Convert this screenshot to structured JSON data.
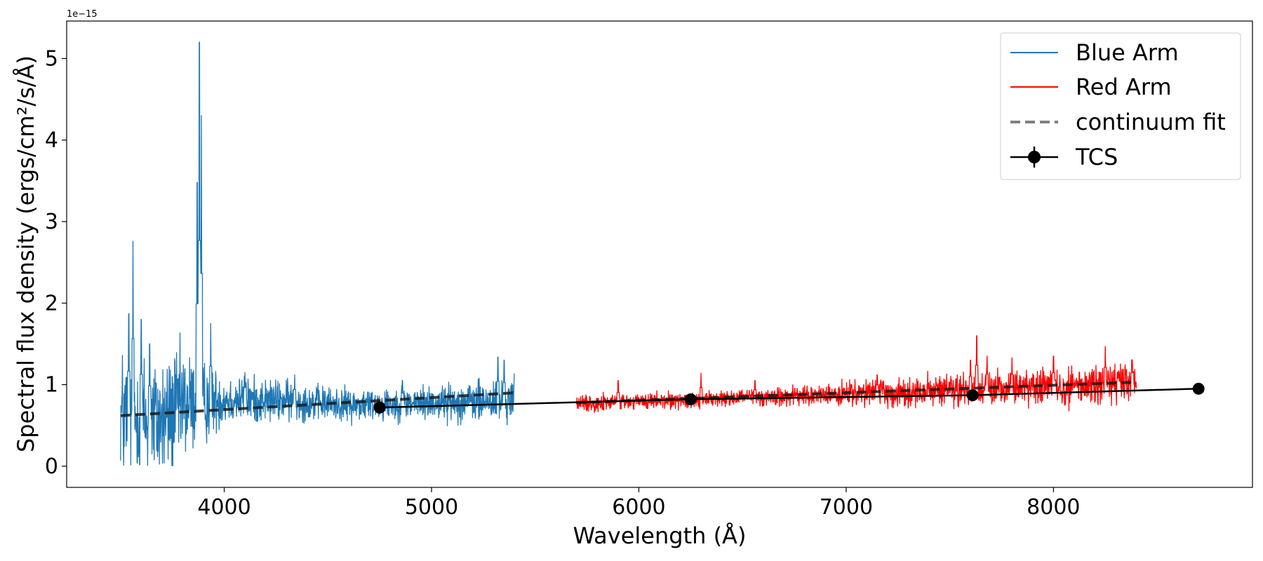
{
  "chart_data": {
    "type": "line",
    "title": "",
    "xlabel": "Wavelength (Å)",
    "ylabel": "Spectral flux density (ergs/cm²/s/Å)",
    "y_offset_label": "1e−15",
    "xlim": [
      3240,
      8960
    ],
    "ylim": [
      -0.26,
      5.46
    ],
    "x_ticks": [
      4000,
      5000,
      6000,
      7000,
      8000
    ],
    "y_ticks": [
      0,
      1,
      2,
      3,
      4,
      5
    ],
    "grid": false,
    "legend_position": "top-right",
    "colors": {
      "blue_arm": "#1f77b4",
      "red_arm": "#ff0000",
      "continuum": "#808080",
      "tcs": "#000000"
    },
    "series": [
      {
        "name": "Blue Arm",
        "style": "line",
        "x_range": [
          3500,
          5400
        ],
        "continuum": [
          [
            3500,
            0.6
          ],
          [
            3700,
            0.55
          ],
          [
            3800,
            0.75
          ],
          [
            4000,
            0.82
          ],
          [
            4300,
            0.8
          ],
          [
            4600,
            0.75
          ],
          [
            5000,
            0.78
          ],
          [
            5400,
            0.8
          ]
        ],
        "noise": [
          [
            3500,
            0.45
          ],
          [
            3800,
            0.35
          ],
          [
            4000,
            0.15
          ],
          [
            4500,
            0.1
          ],
          [
            5000,
            0.1
          ],
          [
            5400,
            0.14
          ]
        ],
        "peaks": [
          [
            3560,
            2.76
          ],
          [
            3540,
            1.87
          ],
          [
            3600,
            1.8
          ],
          [
            3640,
            1.5
          ],
          [
            3870,
            3.48
          ],
          [
            3880,
            5.2
          ],
          [
            3890,
            4.3
          ],
          [
            3935,
            1.75
          ],
          [
            4100,
            1.15
          ],
          [
            4340,
            1.12
          ],
          [
            4860,
            1.05
          ],
          [
            5320,
            1.34
          ],
          [
            5350,
            1.3
          ]
        ]
      },
      {
        "name": "Red Arm",
        "style": "line",
        "x_range": [
          5700,
          8400
        ],
        "continuum": [
          [
            5700,
            0.77
          ],
          [
            6000,
            0.79
          ],
          [
            6500,
            0.84
          ],
          [
            7000,
            0.88
          ],
          [
            7500,
            0.93
          ],
          [
            8000,
            0.98
          ],
          [
            8400,
            1.02
          ]
        ],
        "noise": [
          [
            5700,
            0.05
          ],
          [
            6500,
            0.05
          ],
          [
            7000,
            0.07
          ],
          [
            7500,
            0.09
          ],
          [
            8000,
            0.11
          ],
          [
            8400,
            0.13
          ]
        ],
        "peaks": [
          [
            5900,
            1.05
          ],
          [
            6300,
            1.14
          ],
          [
            6560,
            1.05
          ],
          [
            7150,
            1.12
          ],
          [
            7600,
            1.3
          ],
          [
            7630,
            1.6
          ],
          [
            7680,
            1.35
          ],
          [
            7800,
            1.33
          ],
          [
            8000,
            1.35
          ],
          [
            8250,
            1.47
          ],
          [
            8380,
            1.3
          ]
        ]
      },
      {
        "name": "continuum fit",
        "style": "dashed",
        "points": [
          [
            3500,
            0.62
          ],
          [
            5400,
            0.9
          ],
          [
            5700,
            0.78
          ],
          [
            8400,
            1.03
          ]
        ]
      },
      {
        "name": "TCS",
        "style": "line-marker",
        "points": [
          [
            4750,
            0.72
          ],
          [
            6250,
            0.82
          ],
          [
            7610,
            0.87
          ],
          [
            8700,
            0.95
          ]
        ]
      }
    ]
  }
}
